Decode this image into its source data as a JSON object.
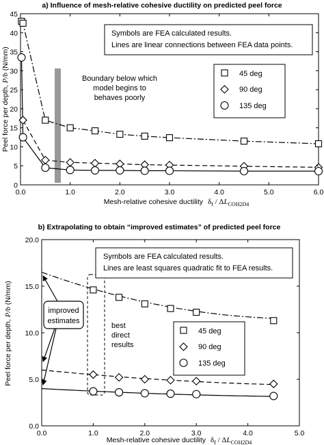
{
  "chart_data": [
    {
      "type": "line",
      "title": "a) Influence of mesh-relative cohesive ductility on predicted peel force",
      "xlabel_prefix": "Mesh-relative cohesive ductility",
      "xlabel_symbol": "δ",
      "xlabel_sub1": "f",
      "xlabel_mid": " / Δ",
      "xlabel_italic": "L",
      "xlabel_sub2": "COH2D4",
      "ylabel_text": "Peel force per depth,",
      "ylabel_math": "P/b",
      "ylabel_unit": "(N/mm)",
      "xlim": [
        0,
        6
      ],
      "ylim": [
        0,
        45
      ],
      "x_ticks": [
        "0.0",
        "1.0",
        "2.0",
        "3.0",
        "4.0",
        "5.0",
        "6.0"
      ],
      "y_ticks": [
        "0",
        "5",
        "10",
        "15",
        "20",
        "25",
        "30",
        "35",
        "40",
        "45"
      ],
      "note_lines": [
        "Symbols are FEA calculated results.",
        "Lines are linear connections between FEA data points."
      ],
      "boundary_label": [
        "Boundary below which",
        "model begins to",
        "behaves poorly"
      ],
      "boundary_x": 0.75,
      "series": [
        {
          "name": "45 deg",
          "marker": "square",
          "dash": "9 3 2 3",
          "x": [
            0.02,
            0.05,
            0.5,
            1.0,
            1.5,
            2.0,
            2.5,
            3.0,
            4.5,
            6.0
          ],
          "y": [
            43.0,
            42.5,
            17.0,
            15.0,
            14.2,
            13.3,
            12.8,
            12.4,
            11.5,
            10.8
          ]
        },
        {
          "name": "90 deg",
          "marker": "diamond",
          "dash": "7 4",
          "x": [
            0.05,
            0.5,
            1.0,
            1.5,
            2.0,
            2.5,
            3.0,
            4.5,
            6.0
          ],
          "y": [
            17.0,
            6.5,
            5.9,
            5.7,
            5.5,
            5.3,
            5.2,
            4.9,
            4.6
          ]
        },
        {
          "name": "135 deg",
          "marker": "circle",
          "dash": "",
          "x": [
            0.02,
            0.05,
            0.5,
            1.0,
            1.5,
            2.0,
            2.5,
            3.0,
            4.5,
            6.0
          ],
          "y": [
            33.5,
            12.5,
            4.5,
            3.9,
            3.8,
            3.8,
            3.7,
            3.7,
            3.6,
            3.6
          ]
        }
      ]
    },
    {
      "type": "line",
      "title": "b) Extrapolating to obtain “improved estimates” of predicted peel force",
      "xlabel_prefix": "Mesh-relative cohesive ductility",
      "xlabel_symbol": "δ",
      "xlabel_sub1": "f",
      "xlabel_mid": " / Δ",
      "xlabel_italic": "L",
      "xlabel_sub2": "COH2D4",
      "ylabel_text": "Peel force per depth,",
      "ylabel_math": "P/b",
      "ylabel_unit": "(N/mm)",
      "xlim": [
        0,
        5
      ],
      "ylim": [
        0,
        20
      ],
      "x_ticks": [
        "0.0",
        "1.0",
        "2.0",
        "3.0",
        "4.0",
        "5.0"
      ],
      "y_ticks": [
        "0.0",
        "5.0",
        "10.0",
        "15.0",
        "20.0"
      ],
      "note_lines": [
        "Symbols are FEA calculated results.",
        "Lines are least squares quadratic fit to FEA results."
      ],
      "improved_label": [
        "improved",
        "estimates"
      ],
      "best_label": [
        "best",
        "direct",
        "results"
      ],
      "series": [
        {
          "name": "45 deg",
          "marker": "square",
          "dash": "9 3 2 3",
          "x": [
            1.0,
            1.5,
            2.0,
            2.5,
            3.0,
            4.5
          ],
          "y": [
            14.6,
            13.8,
            13.1,
            12.6,
            12.2,
            11.3
          ],
          "fit": [
            16.5,
            -2.0,
            0.2
          ]
        },
        {
          "name": "90 deg",
          "marker": "diamond",
          "dash": "7 4",
          "x": [
            1.0,
            1.5,
            2.0,
            2.5,
            3.0,
            4.5
          ],
          "y": [
            5.5,
            5.2,
            5.0,
            4.9,
            4.8,
            4.5
          ],
          "fit": [
            6.0,
            -0.55,
            0.045
          ]
        },
        {
          "name": "135 deg",
          "marker": "circle",
          "dash": "",
          "x": [
            1.0,
            1.5,
            2.0,
            2.5,
            3.0,
            4.5
          ],
          "y": [
            3.7,
            3.6,
            3.5,
            3.45,
            3.4,
            3.2
          ],
          "fit": [
            4.0,
            -0.3,
            0.025
          ]
        }
      ]
    }
  ],
  "legend_entries": [
    "45 deg",
    "90 deg",
    "135 deg"
  ]
}
